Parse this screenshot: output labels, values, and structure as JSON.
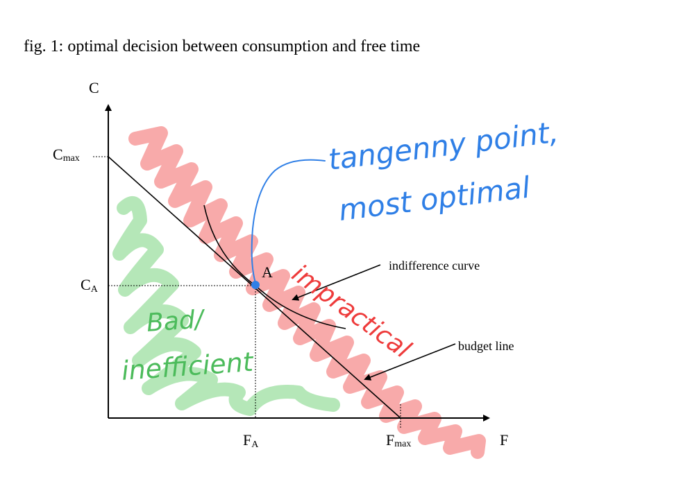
{
  "title": "fig. 1: optimal decision between consumption and free time",
  "axes": {
    "y_label": "C",
    "x_label": "F",
    "c_max": {
      "main": "C",
      "sub": "max"
    },
    "c_a": {
      "main": "C",
      "sub": "A"
    },
    "f_a": {
      "main": "F",
      "sub": "A"
    },
    "f_max": {
      "main": "F",
      "sub": "max"
    }
  },
  "point_label": "A",
  "callouts": {
    "indifference": "indifference curve",
    "budget": "budget line"
  },
  "handwriting": {
    "tangency_line1": "tangenny point,",
    "tangency_line2": "most optimal",
    "impractical": "impractical",
    "bad_line1": "Bad/",
    "bad_line2": "inefficient"
  },
  "colors": {
    "blue": "#2f7fe6",
    "red_marker": "#f7a1a1",
    "red_ink": "#ee3b3b",
    "green_marker": "#a8e3ac",
    "green_ink": "#4cbb5b",
    "ink": "#000000"
  }
}
